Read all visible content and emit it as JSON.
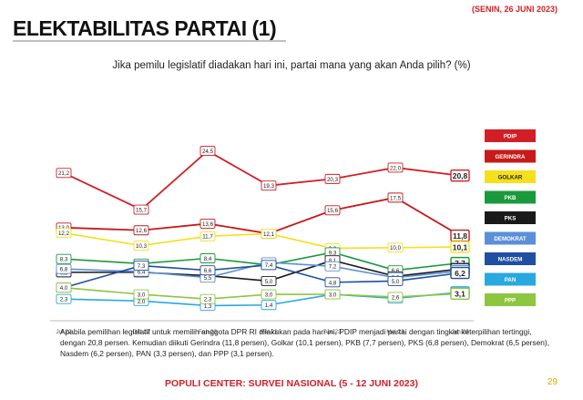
{
  "header": {
    "title": "ELEKTABILITAS PARTAI (1)",
    "date": "(SENIN, 26 JUNI 2023)"
  },
  "question": "Jika pemilu legislatif diadakan hari ini, partai mana yang akan Anda pilih? (%)",
  "chart_data": {
    "type": "line",
    "title": "",
    "xlabel": "",
    "ylabel": "",
    "ylim": [
      0,
      28
    ],
    "grid": false,
    "legend": "right",
    "categories": [
      "Jul 22",
      "Okt 22",
      "Feb 23",
      "Mei 23",
      "Apr 23",
      "Mei 23",
      "Jun 23"
    ],
    "series": [
      {
        "name": "PDIP",
        "color": "#d21f26",
        "values": [
          21.2,
          15.7,
          24.5,
          19.3,
          20.3,
          22.0,
          20.8
        ]
      },
      {
        "name": "GERINDRA",
        "color": "#c71a1a",
        "values": [
          13.0,
          12.6,
          13.6,
          12.1,
          15.6,
          17.5,
          11.8
        ]
      },
      {
        "name": "GOLKAR",
        "color": "#f4e01c",
        "values": [
          12.2,
          10.3,
          11.7,
          12.1,
          9.9,
          10.0,
          10.1
        ]
      },
      {
        "name": "PKB",
        "color": "#1a9a3c",
        "values": [
          8.3,
          7.6,
          8.4,
          7.4,
          9.3,
          6.6,
          7.7
        ]
      },
      {
        "name": "PKS",
        "color": "#1a1a1a",
        "values": [
          6.3,
          6.3,
          5.8,
          5.0,
          8.1,
          5.7,
          6.8
        ]
      },
      {
        "name": "DEMOKRAT",
        "color": "#5b8fd9",
        "values": [
          6.8,
          6.4,
          5.5,
          7.8,
          7.2,
          5.5,
          6.5
        ]
      },
      {
        "name": "NASDEM",
        "color": "#1f4fa0",
        "values": [
          4.0,
          7.3,
          6.6,
          7.4,
          4.8,
          5.0,
          6.2
        ]
      },
      {
        "name": "PAN",
        "color": "#2aa8e0",
        "values": [
          2.3,
          2.0,
          1.3,
          1.4,
          3.0,
          2.4,
          3.3
        ]
      },
      {
        "name": "PPP",
        "color": "#8dc63f",
        "values": [
          4.0,
          3.0,
          2.3,
          3.0,
          3.0,
          2.6,
          3.1
        ]
      }
    ],
    "point_labels": [
      [
        "21,2",
        "15,7",
        "24,5",
        "19,3",
        "20,3",
        "22,0",
        "20,8"
      ],
      [
        "13,0",
        "12,6",
        "13,6",
        "12,1",
        "15,6",
        "17,5",
        "11,8"
      ],
      [
        "12,2",
        "10,3",
        "11,7",
        "12,1",
        "9,9",
        "10,0",
        "10,1"
      ],
      [
        "8,3",
        "7,6",
        "8,4",
        "7,4",
        "9,3",
        "6,6",
        "7,7"
      ],
      [
        "6,3",
        "6,3",
        "5,8",
        "5,0",
        "8,1",
        "5,7",
        "6,8"
      ],
      [
        "6,8",
        "6,4",
        "5,5",
        "7,8",
        "7,2",
        "5,5",
        "6,5"
      ],
      [
        "4,0",
        "7,3",
        "6,6",
        "7,4",
        "4,8",
        "5,0",
        "6,2"
      ],
      [
        "2,3",
        "2,0",
        "1,3",
        "1,4",
        "3,0",
        "2,4",
        "3,3"
      ],
      [
        "4,0",
        "3,0",
        "2,3",
        "3,0",
        "3,0",
        "2,6",
        "3,1"
      ]
    ]
  },
  "note": "Apabila pemilihan legislatif untuk memilih anggota DPR RI dilakukan pada hari ini, PDIP menjadi partai dengan tingkat keterpilihan tertinggi, dengan 20,8 persen. Kemudian diikuti Gerindra (11,8 persen), Golkar (10,1 persen), PKB (7,7 persen), PKS (6,8 persen), Demokrat (6,5 persen), Nasdem (6,2 persen), PAN (3,3 persen), dan PPP (3,1 persen).",
  "footer": "POPULI CENTER: SURVEI NASIONAL (5 - 12 JUNI 2023)",
  "page_number": "29"
}
